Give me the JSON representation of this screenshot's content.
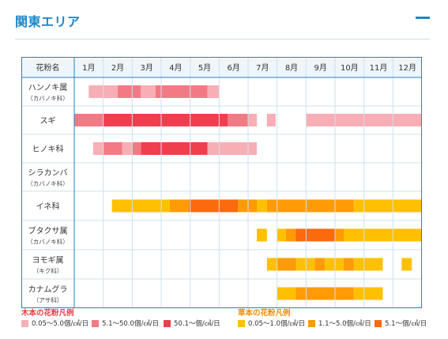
{
  "header": {
    "title": "関東エリア",
    "toggle_icon": "minus-icon"
  },
  "colors": {
    "grid_border": "#1b86c9",
    "cell_border": "#cfe0ee",
    "header_bg": "#eef5fb",
    "tree_low": "#f8aeb5",
    "tree_mid": "#f37a85",
    "tree_high": "#ef3f4f",
    "grass_low": "#ffc001",
    "grass_mid": "#ff9b06",
    "grass_high": "#fb6a0c",
    "tree_legend_title": "#e8383d",
    "grass_legend_title": "#f08a00"
  },
  "chart_data": {
    "type": "table",
    "corner_header": "花粉名",
    "months": [
      "1月",
      "2月",
      "3月",
      "4月",
      "5月",
      "6月",
      "7月",
      "8月",
      "9月",
      "10月",
      "11月",
      "12月"
    ],
    "rows": [
      {
        "name": "ハンノキ属",
        "family": "（カバノキ科）",
        "kind": "tree",
        "segments": [
          {
            "start": 0.5,
            "end": 1.5,
            "level": 1
          },
          {
            "start": 1.5,
            "end": 2.3,
            "level": 2
          },
          {
            "start": 2.3,
            "end": 2.8,
            "level": 1
          },
          {
            "start": 2.8,
            "end": 4.6,
            "level": 2
          },
          {
            "start": 4.6,
            "end": 5.0,
            "level": 1
          }
        ]
      },
      {
        "name": "スギ",
        "family": "",
        "kind": "tree",
        "segments": [
          {
            "start": 0.0,
            "end": 1.0,
            "level": 2
          },
          {
            "start": 1.0,
            "end": 5.3,
            "level": 3
          },
          {
            "start": 5.3,
            "end": 6.0,
            "level": 2
          },
          {
            "start": 6.0,
            "end": 6.3,
            "level": 1
          },
          {
            "start": 6.65,
            "end": 6.95,
            "level": 1
          },
          {
            "start": 8.0,
            "end": 12.0,
            "level": 1
          }
        ]
      },
      {
        "name": "ヒノキ科",
        "family": "",
        "kind": "tree",
        "segments": [
          {
            "start": 0.65,
            "end": 1.0,
            "level": 1
          },
          {
            "start": 1.0,
            "end": 1.65,
            "level": 2
          },
          {
            "start": 1.65,
            "end": 2.0,
            "level": 1
          },
          {
            "start": 2.0,
            "end": 2.3,
            "level": 2
          },
          {
            "start": 2.3,
            "end": 4.6,
            "level": 3
          },
          {
            "start": 4.6,
            "end": 6.3,
            "level": 1
          }
        ]
      },
      {
        "name": "シラカンバ",
        "family": "（カバノキ科）",
        "kind": "tree",
        "segments": []
      },
      {
        "name": "イネ科",
        "family": "",
        "kind": "grass",
        "segments": [
          {
            "start": 1.3,
            "end": 3.3,
            "level": 1
          },
          {
            "start": 3.3,
            "end": 3.95,
            "level": 2
          },
          {
            "start": 3.95,
            "end": 5.65,
            "level": 3
          },
          {
            "start": 5.65,
            "end": 6.3,
            "level": 2
          },
          {
            "start": 6.3,
            "end": 6.65,
            "level": 1
          },
          {
            "start": 6.65,
            "end": 9.65,
            "level": 2
          },
          {
            "start": 9.65,
            "end": 12.0,
            "level": 1
          }
        ]
      },
      {
        "name": "ブタクサ属",
        "family": "（カバノキ科）",
        "kind": "grass",
        "segments": [
          {
            "start": 6.3,
            "end": 6.65,
            "level": 1
          },
          {
            "start": 7.0,
            "end": 7.3,
            "level": 1
          },
          {
            "start": 7.3,
            "end": 7.65,
            "level": 2
          },
          {
            "start": 7.65,
            "end": 9.0,
            "level": 3
          },
          {
            "start": 9.0,
            "end": 9.3,
            "level": 2
          },
          {
            "start": 9.3,
            "end": 12.0,
            "level": 1
          }
        ]
      },
      {
        "name": "ヨモギ属",
        "family": "（キク科）",
        "kind": "grass",
        "segments": [
          {
            "start": 6.65,
            "end": 7.0,
            "level": 1
          },
          {
            "start": 7.0,
            "end": 7.65,
            "level": 2
          },
          {
            "start": 7.65,
            "end": 8.3,
            "level": 1
          },
          {
            "start": 8.3,
            "end": 8.65,
            "level": 2
          },
          {
            "start": 8.65,
            "end": 9.3,
            "level": 1
          },
          {
            "start": 9.3,
            "end": 9.65,
            "level": 2
          },
          {
            "start": 9.65,
            "end": 10.65,
            "level": 1
          },
          {
            "start": 11.3,
            "end": 11.65,
            "level": 1
          }
        ]
      },
      {
        "name": "カナムグラ",
        "family": "（アサ科）",
        "kind": "grass",
        "segments": [
          {
            "start": 7.0,
            "end": 7.65,
            "level": 1
          },
          {
            "start": 7.65,
            "end": 9.65,
            "level": 2
          },
          {
            "start": 9.65,
            "end": 10.65,
            "level": 1
          }
        ]
      }
    ]
  },
  "legend": {
    "tree": {
      "title": "木本の花粉凡例",
      "items": [
        {
          "label": "0.05〜5.0個/㎠/日",
          "level": 1
        },
        {
          "label": "5.1〜50.0個/㎠/日",
          "level": 2
        },
        {
          "label": "50.1〜個/㎠/日",
          "level": 3
        }
      ]
    },
    "grass": {
      "title": "草本の花粉凡例",
      "items": [
        {
          "label": "0.05〜1.0個/㎠/日",
          "level": 1
        },
        {
          "label": "1.1〜5.0個/㎠/日",
          "level": 2
        },
        {
          "label": "5.1〜個/㎠/日",
          "level": 3
        }
      ]
    }
  }
}
